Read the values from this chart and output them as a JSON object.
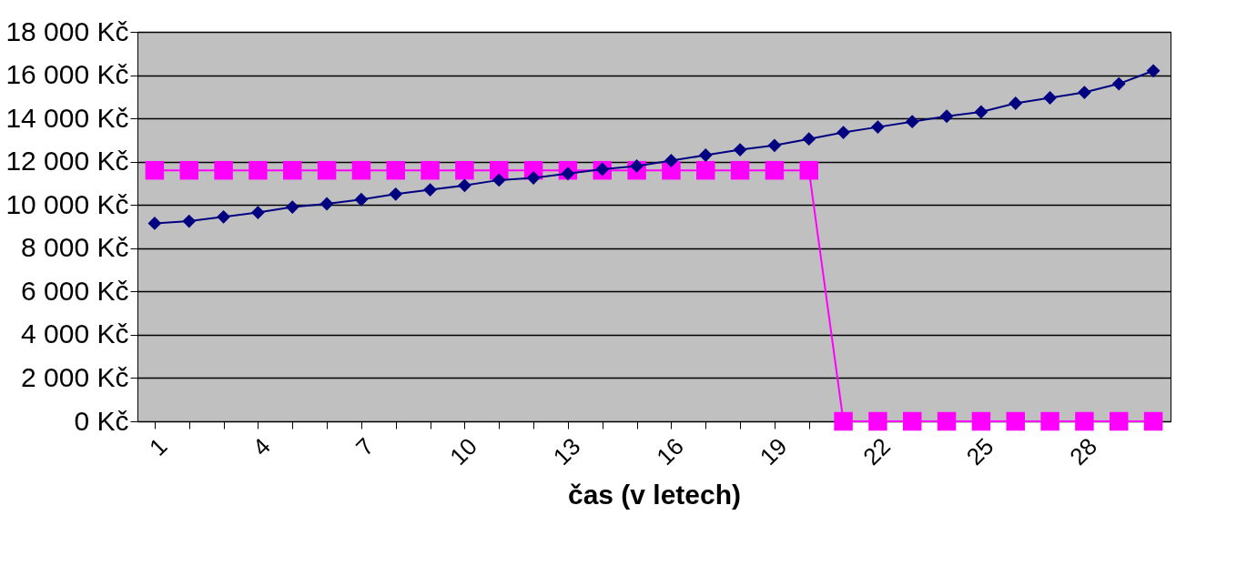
{
  "chart_data": {
    "type": "line",
    "xlabel": "čas (v letech)",
    "categories": [
      "1",
      null,
      null,
      "4",
      null,
      null,
      "7",
      null,
      null,
      "10",
      null,
      null,
      "13",
      null,
      null,
      "16",
      null,
      null,
      "19",
      null,
      null,
      "22",
      null,
      null,
      "25",
      null,
      null,
      "28",
      null,
      null
    ],
    "series": [
      {
        "color": "#000080",
        "marker": "diamond",
        "values": [
          9150,
          9250,
          9450,
          9650,
          9900,
          10050,
          10250,
          10500,
          10700,
          10900,
          11150,
          11250,
          11450,
          11650,
          11800,
          12050,
          12300,
          12550,
          12750,
          13050,
          13350,
          13600,
          13850,
          14100,
          14300,
          14700,
          14950,
          15200,
          15600,
          16200
        ]
      },
      {
        "color": "#ff00ff",
        "marker": "square",
        "values": [
          11600,
          11600,
          11600,
          11600,
          11600,
          11600,
          11600,
          11600,
          11600,
          11600,
          11600,
          11600,
          11600,
          11600,
          11600,
          11600,
          11600,
          11600,
          11600,
          11600,
          0,
          0,
          0,
          0,
          0,
          0,
          0,
          0,
          0,
          0
        ]
      }
    ],
    "ylim": [
      0,
      18000
    ],
    "yticks": [
      {
        "value": 0,
        "label": "0 Kč"
      },
      {
        "value": 2000,
        "label": "2 000 Kč"
      },
      {
        "value": 4000,
        "label": "4 000 Kč"
      },
      {
        "value": 6000,
        "label": "6 000 Kč"
      },
      {
        "value": 8000,
        "label": "8 000 Kč"
      },
      {
        "value": 10000,
        "label": "10 000 Kč"
      },
      {
        "value": 12000,
        "label": "12 000 Kč"
      },
      {
        "value": 14000,
        "label": "14 000 Kč"
      },
      {
        "value": 16000,
        "label": "16 000 Kč"
      },
      {
        "value": 18000,
        "label": "18 000 Kč"
      }
    ],
    "grid": "y"
  }
}
